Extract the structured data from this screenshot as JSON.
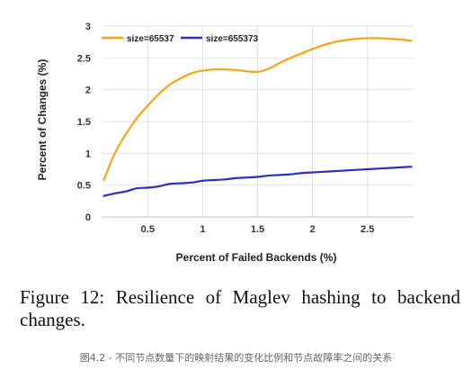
{
  "chart_data": {
    "type": "line",
    "title": "",
    "xlabel": "Percent of Failed Backends (%)",
    "ylabel": "Percent of Changes (%)",
    "xlim": [
      0.08,
      2.92
    ],
    "ylim": [
      0,
      3
    ],
    "x_ticks": [
      "0.5",
      "1",
      "1.5",
      "2",
      "2.5"
    ],
    "y_ticks": [
      "0",
      "0.5",
      "1",
      "1.5",
      "2",
      "2.5",
      "3"
    ],
    "grid": true,
    "legend_position": "top-left",
    "series": [
      {
        "name": "size=65537",
        "color": "#F2A51B",
        "x": [
          0.1,
          0.2,
          0.3,
          0.4,
          0.5,
          0.6,
          0.7,
          0.8,
          0.9,
          1.0,
          1.1,
          1.2,
          1.3,
          1.4,
          1.5,
          1.6,
          1.7,
          1.8,
          1.9,
          2.0,
          2.1,
          2.2,
          2.3,
          2.4,
          2.5,
          2.6,
          2.7,
          2.8,
          2.9
        ],
        "values": [
          0.58,
          1.0,
          1.3,
          1.55,
          1.75,
          1.93,
          2.08,
          2.18,
          2.26,
          2.3,
          2.32,
          2.32,
          2.31,
          2.29,
          2.28,
          2.33,
          2.42,
          2.5,
          2.57,
          2.64,
          2.7,
          2.75,
          2.78,
          2.8,
          2.81,
          2.81,
          2.8,
          2.79,
          2.77
        ]
      },
      {
        "name": "size=655373",
        "color": "#2B2FBF",
        "x": [
          0.1,
          0.2,
          0.3,
          0.4,
          0.5,
          0.6,
          0.7,
          0.8,
          0.9,
          1.0,
          1.1,
          1.2,
          1.3,
          1.4,
          1.5,
          1.6,
          1.7,
          1.8,
          1.9,
          2.0,
          2.1,
          2.2,
          2.3,
          2.4,
          2.5,
          2.6,
          2.7,
          2.8,
          2.9
        ],
        "values": [
          0.33,
          0.37,
          0.4,
          0.45,
          0.46,
          0.48,
          0.52,
          0.53,
          0.54,
          0.57,
          0.58,
          0.59,
          0.61,
          0.62,
          0.63,
          0.65,
          0.66,
          0.67,
          0.69,
          0.7,
          0.71,
          0.72,
          0.73,
          0.74,
          0.75,
          0.76,
          0.77,
          0.78,
          0.79
        ]
      }
    ]
  },
  "caption": {
    "figure": "Figure 12:  Resilience of Maglev hashing to backend changes.",
    "chinese": "图4.2 - 不同节点数量下的映射结果的变化比例和节点故障率之间的关系"
  }
}
